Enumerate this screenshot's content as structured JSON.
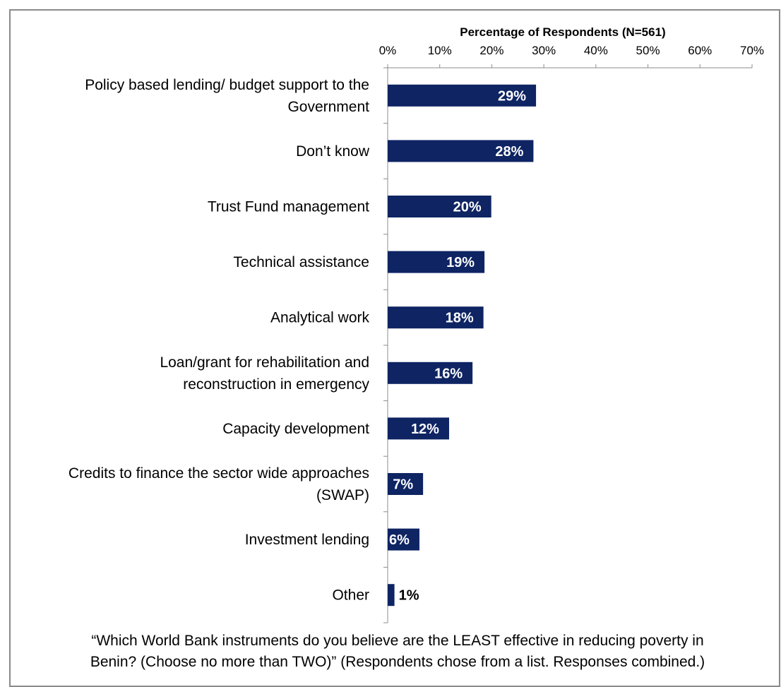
{
  "chart_data": {
    "type": "bar",
    "orientation": "horizontal",
    "title": "Percentage of Respondents (N=561)",
    "categories": [
      [
        "Policy based lending/ budget support to the",
        "Government"
      ],
      [
        "Don’t know"
      ],
      [
        "Trust Fund management"
      ],
      [
        "Technical assistance"
      ],
      [
        "Analytical work"
      ],
      [
        "Loan/grant for rehabilitation and",
        "reconstruction in emergency"
      ],
      [
        "Capacity development"
      ],
      [
        "Credits to finance the sector wide approaches",
        "(SWAP)"
      ],
      [
        "Investment lending"
      ],
      [
        "Other"
      ]
    ],
    "values": [
      28.5,
      28.0,
      19.9,
      18.6,
      18.4,
      16.3,
      11.8,
      6.8,
      6.1,
      1.3
    ],
    "data_labels": [
      "29%",
      "28%",
      "20%",
      "19%",
      "18%",
      "16%",
      "12%",
      "7%",
      "6%",
      "1%"
    ],
    "xlim": [
      0,
      70
    ],
    "ticks": [
      "0%",
      "10%",
      "20%",
      "30%",
      "40%",
      "50%",
      "60%",
      "70%"
    ],
    "tick_values": [
      0,
      10,
      20,
      30,
      40,
      50,
      60,
      70
    ],
    "bar_color": "#0e2463",
    "grid": false
  },
  "caption": {
    "line1": "“Which World Bank instruments do you believe are the LEAST effective in reducing poverty in",
    "line2": "Benin? (Choose no more than TWO)” (Respondents chose from a list. Responses combined.)"
  }
}
